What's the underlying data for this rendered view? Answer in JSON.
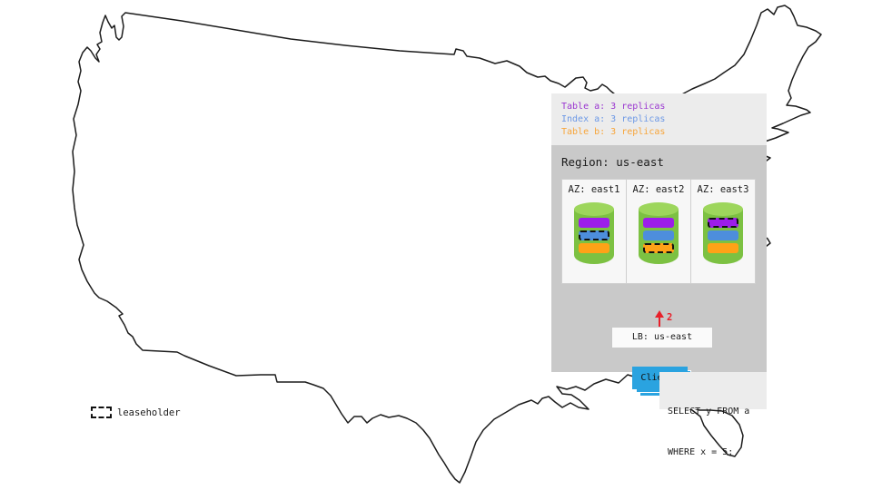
{
  "legend": {
    "items": [
      {
        "label": "Table a: 3 replicas",
        "color": "#9a36d0"
      },
      {
        "label": "Index a: 3 replicas",
        "color": "#6d99e6"
      },
      {
        "label": "Table b: 3 replicas",
        "color": "#f7a53a"
      }
    ]
  },
  "region": {
    "title": "Region: us-east",
    "azs": [
      {
        "label": "AZ: east1",
        "bars": [
          {
            "replica": "table-a",
            "color": "#9c1ee9",
            "leaseholder": false
          },
          {
            "replica": "index-a",
            "color": "#4d8edc",
            "leaseholder": true
          },
          {
            "replica": "table-b",
            "color": "#ffa217",
            "leaseholder": false
          }
        ]
      },
      {
        "label": "AZ: east2",
        "bars": [
          {
            "replica": "table-a",
            "color": "#9c1ee9",
            "leaseholder": false
          },
          {
            "replica": "index-a",
            "color": "#4d8edc",
            "leaseholder": false
          },
          {
            "replica": "table-b",
            "color": "#ffa217",
            "leaseholder": true
          }
        ]
      },
      {
        "label": "AZ: east3",
        "bars": [
          {
            "replica": "table-a",
            "color": "#9c1ee9",
            "leaseholder": true
          },
          {
            "replica": "index-a",
            "color": "#4d8edc",
            "leaseholder": false
          },
          {
            "replica": "table-b",
            "color": "#ffa217",
            "leaseholder": false
          }
        ]
      }
    ],
    "lb_label": "LB: us-east",
    "clients_label": "Clients",
    "arrow_label": "2"
  },
  "query": {
    "line1": "SELECT y FROM a",
    "line2": "WHERE x = 5;"
  },
  "map_legend": {
    "leaseholder_label": "leaseholder"
  },
  "colors": {
    "panel_bg": "#ececec",
    "region_bg": "#c9c9c9",
    "cylinder_green": "#7cc142",
    "cylinder_top_green": "#9dd65c",
    "clients_blue": "#2aa3e0",
    "arrow_red": "#e8202a",
    "map_stroke": "#1c1c1c"
  }
}
